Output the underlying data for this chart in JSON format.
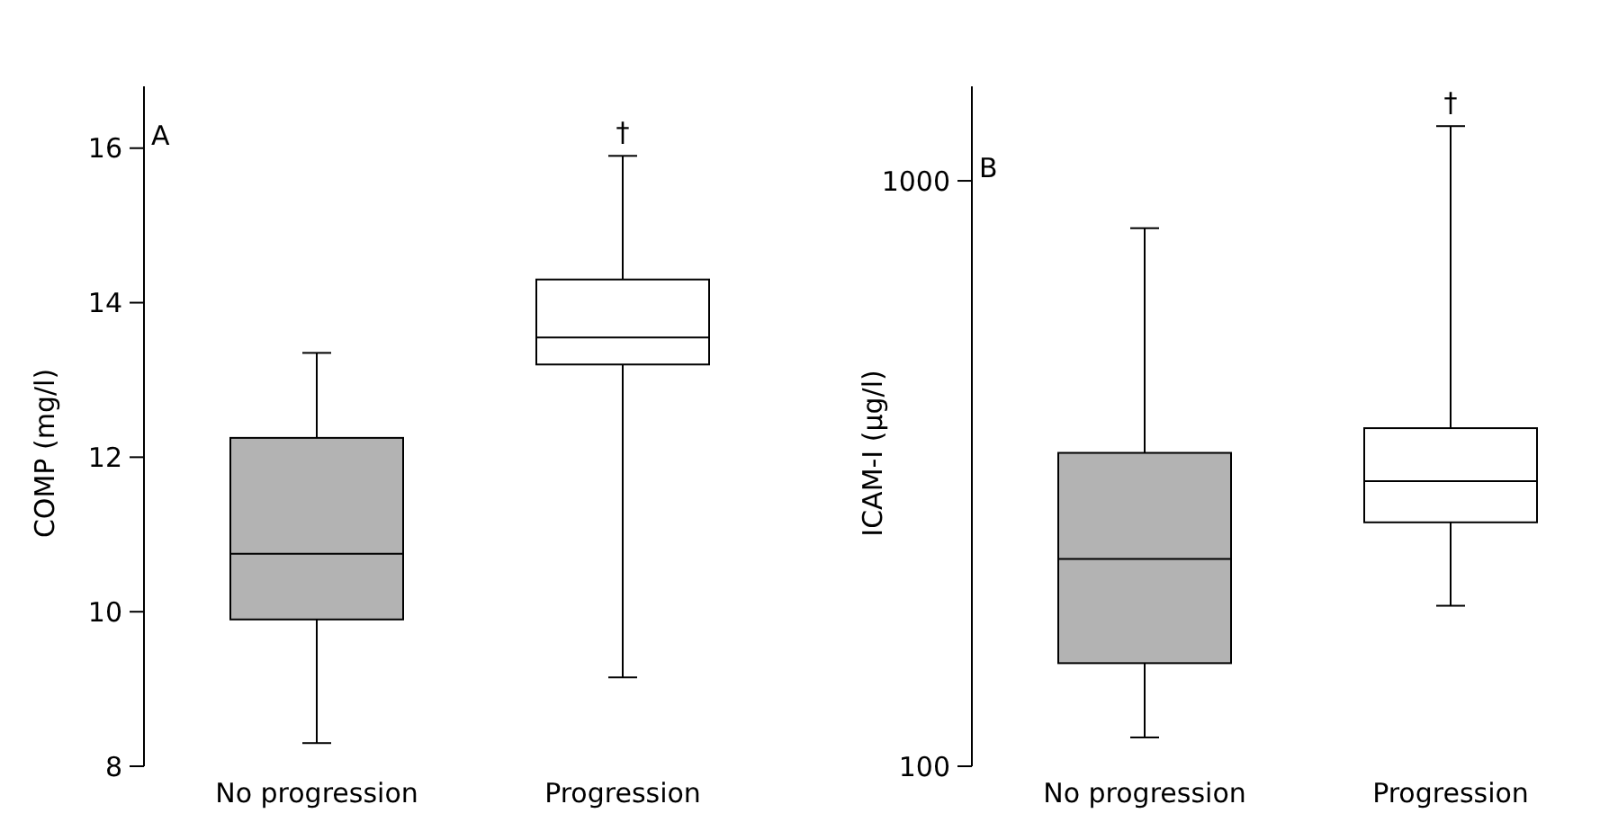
{
  "chart_data": [
    {
      "type": "box",
      "ylabel": "COMP (mg/l)",
      "categories": [
        "No progression",
        "Progression"
      ],
      "colors": [
        "#b3b3b3",
        "#ffffff"
      ],
      "boxes": [
        {
          "low": 8.3,
          "q1": 9.9,
          "median": 10.75,
          "q3": 12.25,
          "high": 13.35
        },
        {
          "low": 9.15,
          "q1": 13.2,
          "median": 13.55,
          "q3": 14.3,
          "high": 15.9
        }
      ],
      "ylim": [
        8,
        16.8
      ],
      "yticks": [
        8,
        10,
        12,
        14,
        16
      ],
      "grid": false,
      "annotations": [
        "A",
        "†"
      ]
    },
    {
      "type": "box",
      "ylabel": "ICAM-I (µg/l)",
      "categories": [
        "No progression",
        "Progression"
      ],
      "colors": [
        "#b3b3b3",
        "#ffffff"
      ],
      "boxes": [
        {
          "low": 112,
          "q1": 150,
          "median": 226,
          "q3": 343,
          "high": 830
        },
        {
          "low": 188,
          "q1": 261,
          "median": 307,
          "q3": 378,
          "high": 1240
        }
      ],
      "log": true,
      "ylim": [
        100,
        1450
      ],
      "yticks": [
        100,
        1000
      ],
      "grid": false,
      "annotations": [
        "B",
        "†"
      ]
    }
  ]
}
